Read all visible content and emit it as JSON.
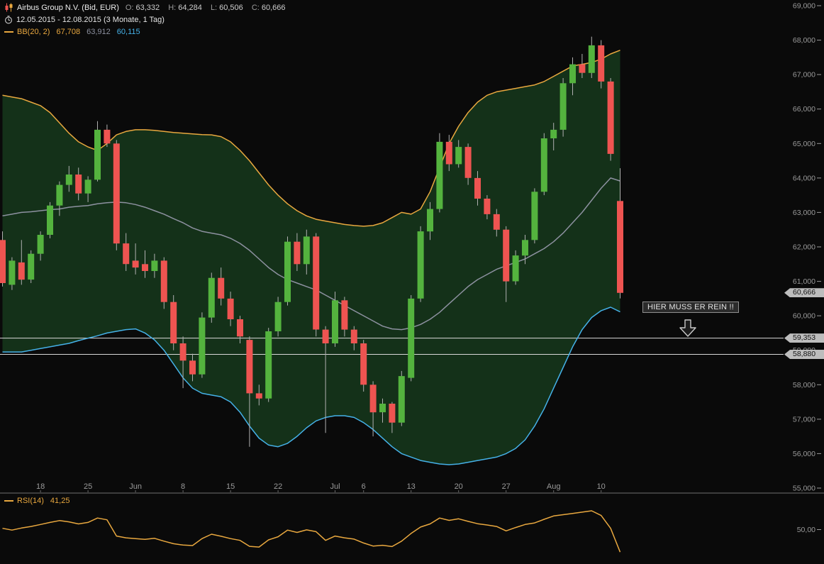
{
  "header": {
    "instrument": "Airbus Group N.V. (Bid, EUR)",
    "o_label": "O:",
    "o": "63,332",
    "h_label": "H:",
    "h": "64,284",
    "l_label": "L:",
    "l": "60,506",
    "c_label": "C:",
    "c": "60,666",
    "date_range": "12.05.2015 - 12.08.2015 (3 Monate, 1 Tag)"
  },
  "legend": {
    "bb_label": "BB(20, 2)",
    "bb_upper": "67,708",
    "bb_middle": "63,912",
    "bb_lower": "60,115",
    "rsi_label": "RSI(14)",
    "rsi_value": "41,25"
  },
  "annotation": {
    "text": "HIER MUSS ER REIN !!"
  },
  "colors": {
    "background": "#0a0a0a",
    "up": "#54b33e",
    "down": "#ee5451",
    "wick": "#b0b0b0",
    "band_fill": "#143119",
    "bb_upper": "#e9a83f",
    "bb_middle": "#8d91a0",
    "bb_lower": "#45b1e8",
    "level_line": "#d9d9d9",
    "axis_text": "#9a9a9a",
    "tag_bg": "#bdbdbd",
    "tag_text": "#131313",
    "rsi": "#e9a83f"
  },
  "chart_data": {
    "type": "candlestick",
    "title": "Airbus Group N.V. (Bid, EUR)",
    "period": "12.05.2015 - 12.08.2015 (3 Monate, 1 Tag)",
    "ylim": [
      55,
      69
    ],
    "y_ticks": [
      {
        "value": 69,
        "label": "69,000"
      },
      {
        "value": 68,
        "label": "68,000"
      },
      {
        "value": 67,
        "label": "67,000"
      },
      {
        "value": 66,
        "label": "66,000"
      },
      {
        "value": 65,
        "label": "65,000"
      },
      {
        "value": 64,
        "label": "64,000"
      },
      {
        "value": 63,
        "label": "63,000"
      },
      {
        "value": 62,
        "label": "62,000"
      },
      {
        "value": 61,
        "label": "61,000"
      },
      {
        "value": 60,
        "label": "60,000"
      },
      {
        "value": 59,
        "label": "59,000"
      },
      {
        "value": 58,
        "label": "58,000"
      },
      {
        "value": 57,
        "label": "57,000"
      },
      {
        "value": 56,
        "label": "56,000"
      },
      {
        "value": 55,
        "label": "55,000"
      }
    ],
    "x_labels": [
      {
        "label": "18",
        "i": 4
      },
      {
        "label": "25",
        "i": 9
      },
      {
        "label": "Jun",
        "i": 14
      },
      {
        "label": "8",
        "i": 19
      },
      {
        "label": "15",
        "i": 24
      },
      {
        "label": "22",
        "i": 29
      },
      {
        "label": "Jul",
        "i": 35
      },
      {
        "label": "6",
        "i": 38
      },
      {
        "label": "13",
        "i": 43
      },
      {
        "label": "20",
        "i": 48
      },
      {
        "label": "27",
        "i": 53
      },
      {
        "label": "Aug",
        "i": 58
      },
      {
        "label": "10",
        "i": 63
      }
    ],
    "candles_ohlc": [
      [
        62.2,
        62.45,
        60.85,
        60.95
      ],
      [
        60.9,
        61.7,
        60.75,
        61.6
      ],
      [
        61.55,
        62.2,
        60.9,
        61.05
      ],
      [
        61.05,
        61.9,
        60.95,
        61.8
      ],
      [
        61.8,
        62.45,
        61.6,
        62.35
      ],
      [
        62.35,
        63.3,
        62.25,
        63.2
      ],
      [
        63.2,
        63.9,
        62.9,
        63.8
      ],
      [
        63.8,
        64.35,
        63.6,
        64.1
      ],
      [
        64.1,
        64.3,
        63.35,
        63.55
      ],
      [
        63.55,
        64.05,
        63.3,
        63.95
      ],
      [
        63.95,
        65.65,
        63.9,
        65.4
      ],
      [
        65.4,
        65.55,
        64.9,
        65.0
      ],
      [
        65.0,
        65.1,
        61.9,
        62.1
      ],
      [
        62.1,
        62.4,
        61.3,
        61.5
      ],
      [
        61.6,
        62.1,
        61.2,
        61.4
      ],
      [
        61.5,
        61.9,
        61.1,
        61.3
      ],
      [
        61.3,
        61.8,
        61.1,
        61.6
      ],
      [
        61.6,
        61.7,
        60.2,
        60.4
      ],
      [
        60.4,
        60.6,
        59.0,
        59.2
      ],
      [
        59.2,
        59.4,
        57.9,
        58.7
      ],
      [
        58.7,
        58.9,
        58.1,
        58.3
      ],
      [
        58.3,
        60.1,
        58.2,
        59.95
      ],
      [
        59.95,
        61.25,
        59.8,
        61.1
      ],
      [
        61.1,
        61.4,
        60.3,
        60.5
      ],
      [
        60.5,
        60.7,
        59.7,
        59.9
      ],
      [
        59.9,
        60.0,
        59.2,
        59.4
      ],
      [
        59.3,
        59.4,
        56.2,
        57.75
      ],
      [
        57.75,
        58.0,
        57.4,
        57.6
      ],
      [
        57.6,
        59.65,
        57.5,
        59.55
      ],
      [
        59.55,
        60.55,
        59.4,
        60.4
      ],
      [
        60.4,
        62.3,
        60.3,
        62.15
      ],
      [
        62.15,
        62.4,
        61.3,
        61.5
      ],
      [
        61.5,
        62.5,
        61.2,
        62.3
      ],
      [
        62.3,
        62.4,
        59.4,
        59.6
      ],
      [
        59.6,
        59.7,
        56.6,
        59.2
      ],
      [
        59.2,
        60.7,
        59.1,
        60.45
      ],
      [
        60.45,
        60.55,
        59.4,
        59.6
      ],
      [
        59.6,
        59.7,
        59.0,
        59.2
      ],
      [
        59.2,
        59.3,
        57.8,
        58.0
      ],
      [
        58.0,
        58.1,
        56.5,
        57.2
      ],
      [
        57.2,
        57.6,
        56.9,
        57.45
      ],
      [
        57.45,
        57.5,
        56.6,
        56.9
      ],
      [
        56.9,
        58.4,
        56.8,
        58.25
      ],
      [
        58.2,
        60.6,
        58.1,
        60.5
      ],
      [
        60.5,
        62.6,
        60.4,
        62.45
      ],
      [
        62.45,
        63.3,
        62.2,
        63.1
      ],
      [
        63.1,
        65.3,
        63.0,
        65.05
      ],
      [
        65.05,
        65.25,
        64.2,
        64.4
      ],
      [
        64.4,
        65.1,
        64.3,
        64.9
      ],
      [
        64.9,
        65.0,
        63.8,
        64.0
      ],
      [
        64.0,
        64.2,
        63.2,
        63.4
      ],
      [
        63.4,
        63.5,
        62.8,
        62.95
      ],
      [
        62.95,
        63.1,
        62.3,
        62.5
      ],
      [
        62.5,
        62.6,
        60.4,
        61.0
      ],
      [
        61.0,
        61.9,
        60.9,
        61.75
      ],
      [
        61.75,
        62.35,
        61.5,
        62.2
      ],
      [
        62.2,
        63.7,
        62.1,
        63.6
      ],
      [
        63.6,
        65.3,
        63.5,
        65.15
      ],
      [
        65.15,
        65.6,
        64.8,
        65.4
      ],
      [
        65.4,
        66.9,
        65.2,
        66.75
      ],
      [
        66.75,
        67.5,
        66.4,
        67.3
      ],
      [
        67.3,
        67.6,
        66.9,
        67.05
      ],
      [
        67.05,
        68.1,
        66.9,
        67.85
      ],
      [
        67.85,
        68.0,
        66.6,
        66.8
      ],
      [
        66.8,
        66.9,
        64.5,
        64.7
      ],
      [
        63.332,
        64.284,
        60.506,
        60.666
      ]
    ],
    "bollinger": {
      "window": 20,
      "stddev": 2,
      "upper": [
        66.4,
        66.35,
        66.3,
        66.2,
        66.1,
        65.9,
        65.6,
        65.3,
        65.05,
        64.9,
        64.8,
        65.0,
        65.25,
        65.35,
        65.4,
        65.4,
        65.38,
        65.35,
        65.32,
        65.3,
        65.28,
        65.26,
        65.25,
        65.2,
        65.05,
        64.8,
        64.5,
        64.15,
        63.8,
        63.5,
        63.25,
        63.05,
        62.9,
        62.8,
        62.75,
        62.7,
        62.65,
        62.62,
        62.6,
        62.62,
        62.7,
        62.85,
        63.0,
        62.95,
        63.1,
        63.6,
        64.3,
        65.0,
        65.5,
        65.9,
        66.2,
        66.4,
        66.5,
        66.55,
        66.6,
        66.65,
        66.7,
        66.8,
        66.95,
        67.1,
        67.25,
        67.3,
        67.35,
        67.45,
        67.6,
        67.708
      ],
      "middle": [
        62.9,
        62.95,
        63.0,
        63.02,
        63.05,
        63.08,
        63.1,
        63.15,
        63.18,
        63.2,
        63.25,
        63.28,
        63.3,
        63.28,
        63.23,
        63.15,
        63.05,
        62.95,
        62.82,
        62.7,
        62.55,
        62.45,
        62.4,
        62.35,
        62.25,
        62.1,
        61.9,
        61.65,
        61.4,
        61.2,
        61.05,
        60.95,
        60.85,
        60.75,
        60.6,
        60.45,
        60.3,
        60.15,
        60.0,
        59.85,
        59.7,
        59.62,
        59.6,
        59.65,
        59.75,
        59.9,
        60.1,
        60.35,
        60.6,
        60.85,
        61.05,
        61.2,
        61.35,
        61.45,
        61.55,
        61.65,
        61.8,
        61.95,
        62.15,
        62.4,
        62.7,
        63.0,
        63.35,
        63.7,
        64.0,
        63.912
      ],
      "lower": [
        58.95,
        58.95,
        58.95,
        59.0,
        59.05,
        59.1,
        59.15,
        59.2,
        59.28,
        59.35,
        59.42,
        59.5,
        59.55,
        59.6,
        59.62,
        59.5,
        59.3,
        59.0,
        58.6,
        58.2,
        57.9,
        57.75,
        57.7,
        57.65,
        57.5,
        57.2,
        56.8,
        56.45,
        56.25,
        56.2,
        56.3,
        56.5,
        56.75,
        56.95,
        57.05,
        57.1,
        57.1,
        57.05,
        56.9,
        56.7,
        56.45,
        56.2,
        56.0,
        55.9,
        55.8,
        55.75,
        55.7,
        55.68,
        55.7,
        55.75,
        55.8,
        55.85,
        55.9,
        56.0,
        56.15,
        56.4,
        56.8,
        57.3,
        57.9,
        58.5,
        59.1,
        59.6,
        59.95,
        60.15,
        60.25,
        60.115
      ]
    },
    "levels": [
      {
        "value": 59.353,
        "label": "59,353"
      },
      {
        "value": 58.88,
        "label": "58,880"
      }
    ],
    "current_price": {
      "value": 60.666,
      "label": "60,666"
    },
    "rsi": {
      "period": 14,
      "current": 41.25,
      "ylim": [
        38,
        62
      ],
      "y_ticks": [
        {
          "value": 50,
          "label": "50,00"
        }
      ],
      "values": [
        50.5,
        49.8,
        50.6,
        51.2,
        52.0,
        52.8,
        53.5,
        53.0,
        52.2,
        52.8,
        54.5,
        53.8,
        47.5,
        46.8,
        46.5,
        46.2,
        46.6,
        45.5,
        44.5,
        44.0,
        43.8,
        46.5,
        48.2,
        47.4,
        46.5,
        45.8,
        43.5,
        43.2,
        46.0,
        47.2,
        49.8,
        48.9,
        49.9,
        49.2,
        45.8,
        47.5,
        46.8,
        46.3,
        44.8,
        43.6,
        43.9,
        43.4,
        45.5,
        48.5,
        51.0,
        52.2,
        54.5,
        53.6,
        54.2,
        53.2,
        52.3,
        51.8,
        51.2,
        49.5,
        50.8,
        52.0,
        52.6,
        54.0,
        55.3,
        55.8,
        56.3,
        56.8,
        57.3,
        55.5,
        50.5,
        41.25
      ]
    }
  }
}
